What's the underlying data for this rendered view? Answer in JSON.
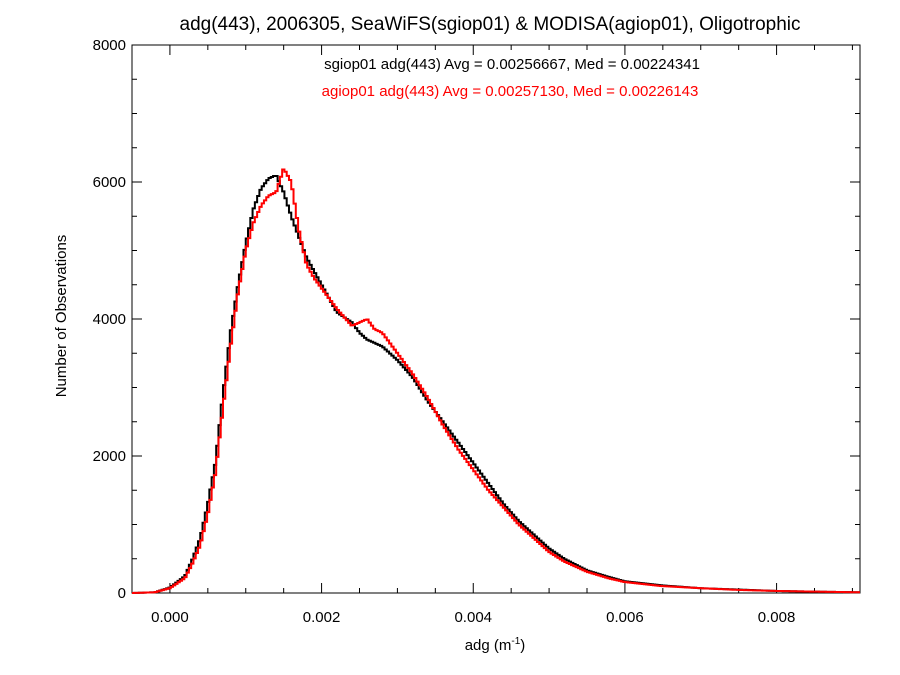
{
  "chart_data": {
    "type": "line",
    "style": "histogram-step",
    "title": "adg(443), 2006305, SeaWiFS(sgiop01) & MODISA(agiop01), Oligotrophic",
    "xlabel": "adg (m",
    "xlabel_sup": "-1",
    "xlabel_close": ")",
    "ylabel": "Number of Observations",
    "xlim": [
      -0.0005,
      0.0091
    ],
    "ylim": [
      0,
      8000
    ],
    "x_ticks": [
      0.0,
      0.002,
      0.004,
      0.006,
      0.008
    ],
    "x_tick_labels": [
      "0.000",
      "0.002",
      "0.004",
      "0.006",
      "0.008"
    ],
    "y_ticks": [
      0,
      2000,
      4000,
      6000,
      8000
    ],
    "y_tick_labels": [
      "0",
      "2000",
      "4000",
      "6000",
      "8000"
    ],
    "grid": false,
    "series": [
      {
        "name": "sgiop01",
        "color": "#000000",
        "stats_label": "sgiop01 adg(443) Avg = 0.00256667, Med = 0.00224341",
        "x": [
          -0.0005,
          -0.0002,
          0.0,
          0.0002,
          0.0003,
          0.0004,
          0.0005,
          0.0006,
          0.0007,
          0.0008,
          0.0009,
          0.001,
          0.0011,
          0.0012,
          0.0013,
          0.0014,
          0.0015,
          0.0016,
          0.0017,
          0.0018,
          0.0019,
          0.002,
          0.0022,
          0.0024,
          0.0025,
          0.0026,
          0.0027,
          0.0028,
          0.003,
          0.0032,
          0.0034,
          0.0036,
          0.0038,
          0.004,
          0.0042,
          0.0044,
          0.0046,
          0.0048,
          0.005,
          0.0052,
          0.0055,
          0.0058,
          0.006,
          0.0065,
          0.007,
          0.0075,
          0.008,
          0.0085,
          0.0091
        ],
        "y": [
          0,
          10,
          80,
          250,
          500,
          800,
          1300,
          1900,
          2900,
          3800,
          4500,
          5100,
          5600,
          5900,
          6050,
          6100,
          5850,
          5500,
          5200,
          4900,
          4700,
          4500,
          4100,
          3950,
          3800,
          3700,
          3650,
          3600,
          3400,
          3150,
          2800,
          2500,
          2200,
          1900,
          1600,
          1300,
          1050,
          850,
          650,
          500,
          330,
          230,
          170,
          110,
          70,
          50,
          30,
          20,
          10
        ]
      },
      {
        "name": "agiop01",
        "color": "#ff0000",
        "stats_label": "agiop01 adg(443) Avg = 0.00257130, Med = 0.00226143",
        "x": [
          -0.0005,
          -0.0002,
          0.0,
          0.0002,
          0.0003,
          0.0004,
          0.0005,
          0.0006,
          0.0007,
          0.0008,
          0.0009,
          0.001,
          0.0011,
          0.0012,
          0.0013,
          0.0014,
          0.0015,
          0.0016,
          0.0017,
          0.0018,
          0.0019,
          0.002,
          0.0022,
          0.0024,
          0.0025,
          0.0026,
          0.0027,
          0.0028,
          0.003,
          0.0032,
          0.0034,
          0.0036,
          0.0038,
          0.004,
          0.0042,
          0.0044,
          0.0046,
          0.0048,
          0.005,
          0.0052,
          0.0055,
          0.0058,
          0.006,
          0.0065,
          0.007,
          0.0075,
          0.008,
          0.0085,
          0.0091
        ],
        "y": [
          0,
          10,
          70,
          220,
          440,
          700,
          1150,
          1750,
          2700,
          3600,
          4400,
          5000,
          5400,
          5650,
          5800,
          5850,
          6200,
          6000,
          5300,
          4800,
          4600,
          4450,
          4150,
          3900,
          3950,
          4000,
          3850,
          3800,
          3500,
          3200,
          2850,
          2450,
          2100,
          1800,
          1500,
          1250,
          1000,
          800,
          600,
          460,
          310,
          210,
          160,
          100,
          70,
          45,
          30,
          20,
          10
        ]
      }
    ]
  }
}
